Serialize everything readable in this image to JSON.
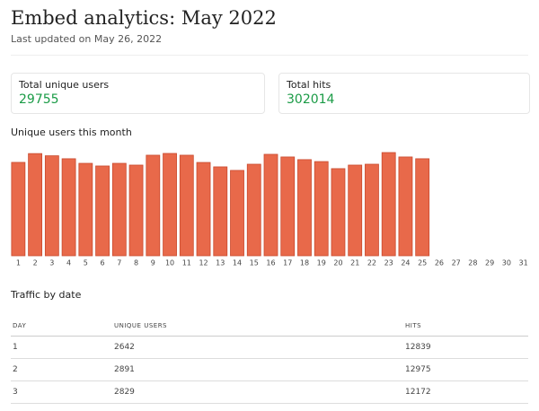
{
  "header": {
    "title": "Embed analytics: May 2022",
    "subtitle": "Last updated on May 26, 2022"
  },
  "cards": [
    {
      "label": "Total unique users",
      "value": 29755
    },
    {
      "label": "Total hits",
      "value": 302014
    }
  ],
  "chart_data": {
    "type": "bar",
    "title": "Unique users this month",
    "color": "#e8694a",
    "categories": [
      "1",
      "2",
      "3",
      "4",
      "5",
      "6",
      "7",
      "8",
      "9",
      "10",
      "11",
      "12",
      "13",
      "14",
      "15",
      "16",
      "17",
      "18",
      "19",
      "20",
      "21",
      "22",
      "23",
      "24",
      "25",
      "26",
      "27",
      "28",
      "29",
      "30",
      "31"
    ],
    "values": [
      2642,
      2891,
      2829,
      2745,
      2615,
      2540,
      2615,
      2565,
      2845,
      2895,
      2845,
      2640,
      2515,
      2415,
      2590,
      2870,
      2795,
      2720,
      2665,
      2465,
      2565,
      2590,
      2920,
      2795,
      2745,
      null,
      null,
      null,
      null,
      null,
      null
    ]
  },
  "table": {
    "title": "Traffic by date",
    "headers": [
      "DAY",
      "UNIQUE USERS",
      "HITS"
    ],
    "rows": [
      [
        1,
        2642,
        12839
      ],
      [
        2,
        2891,
        12975
      ],
      [
        3,
        2829,
        12172
      ]
    ]
  }
}
